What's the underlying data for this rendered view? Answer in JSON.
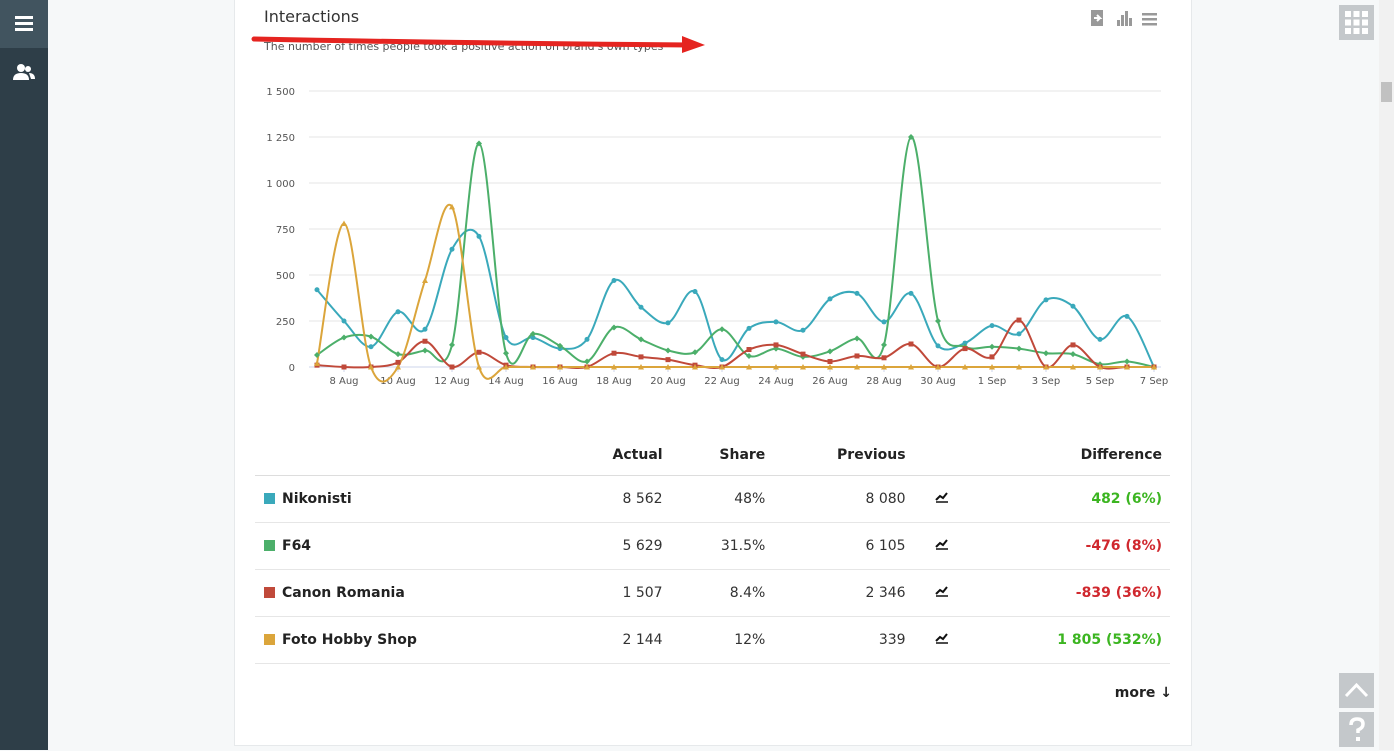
{
  "chart_data": {
    "type": "line",
    "title": "Interactions",
    "subtitle": "The number of times people took a positive action on brand's own types",
    "categories": [
      null,
      "8 Aug",
      null,
      "10 Aug",
      null,
      "12 Aug",
      null,
      "14 Aug",
      null,
      "16 Aug",
      null,
      "18 Aug",
      null,
      "20 Aug",
      null,
      "22 Aug",
      null,
      "24 Aug",
      null,
      "26 Aug",
      null,
      "28 Aug",
      null,
      "30 Aug",
      null,
      "1 Sep",
      null,
      "3 Sep",
      null,
      "5 Sep",
      null,
      "7 Sep"
    ],
    "series": [
      {
        "name": "Nikonisti",
        "color": "#3aa9bb",
        "values": [
          420,
          250,
          110,
          300,
          205,
          640,
          710,
          160,
          160,
          100,
          150,
          470,
          325,
          240,
          410,
          40,
          210,
          245,
          200,
          370,
          400,
          245,
          400,
          115,
          130,
          225,
          180,
          365,
          330,
          150,
          275,
          0
        ]
      },
      {
        "name": "F64",
        "color": "#4caf6a",
        "values": [
          65,
          160,
          165,
          70,
          90,
          120,
          1215,
          75,
          180,
          115,
          30,
          215,
          150,
          90,
          80,
          205,
          60,
          100,
          55,
          85,
          155,
          120,
          1250,
          250,
          110,
          110,
          100,
          75,
          70,
          15,
          30,
          0
        ]
      },
      {
        "name": "Canon Romania",
        "color": "#c0493a",
        "values": [
          10,
          0,
          0,
          25,
          140,
          0,
          80,
          10,
          0,
          0,
          0,
          75,
          55,
          40,
          10,
          0,
          95,
          120,
          70,
          30,
          60,
          50,
          125,
          0,
          100,
          55,
          255,
          0,
          120,
          0,
          0,
          0
        ]
      },
      {
        "name": "Foto Hobby Shop",
        "color": "#dba53b",
        "values": [
          20,
          780,
          0,
          0,
          470,
          870,
          0,
          0,
          0,
          0,
          0,
          0,
          0,
          0,
          0,
          0,
          0,
          0,
          0,
          0,
          0,
          0,
          0,
          0,
          0,
          0,
          0,
          0,
          0,
          0,
          0,
          0
        ]
      }
    ],
    "ylim": [
      0,
      1500
    ],
    "yticks": [
      0,
      250,
      500,
      750,
      {
        "value": 1000,
        "label": "1 000"
      },
      {
        "value": 1250,
        "label": "1 250"
      },
      {
        "value": 1500,
        "label": "1 500"
      }
    ],
    "grid": true
  },
  "table": {
    "headers": [
      "Actual",
      "Share",
      "Previous",
      "Difference"
    ],
    "rows": [
      {
        "name": "Nikonisti",
        "color": "#3aa9bb",
        "actual": "8 562",
        "share": "48%",
        "previous": "8 080",
        "difference": "482 (6%)",
        "difference_color": "#3cb521"
      },
      {
        "name": "F64",
        "color": "#4caf6a",
        "actual": "5 629",
        "share": "31.5%",
        "previous": "6 105",
        "difference": "-476 (8%)",
        "difference_color": "#d0282e"
      },
      {
        "name": "Canon Romania",
        "color": "#c0493a",
        "actual": "1 507",
        "share": "8.4%",
        "previous": "2 346",
        "difference": "-839 (36%)",
        "difference_color": "#d0282e"
      },
      {
        "name": "Foto Hobby Shop",
        "color": "#dba53b",
        "actual": "2 144",
        "share": "12%",
        "previous": "339",
        "difference": "1 805 (532%)",
        "difference_color": "#3cb521"
      }
    ],
    "more": "more ↓"
  }
}
